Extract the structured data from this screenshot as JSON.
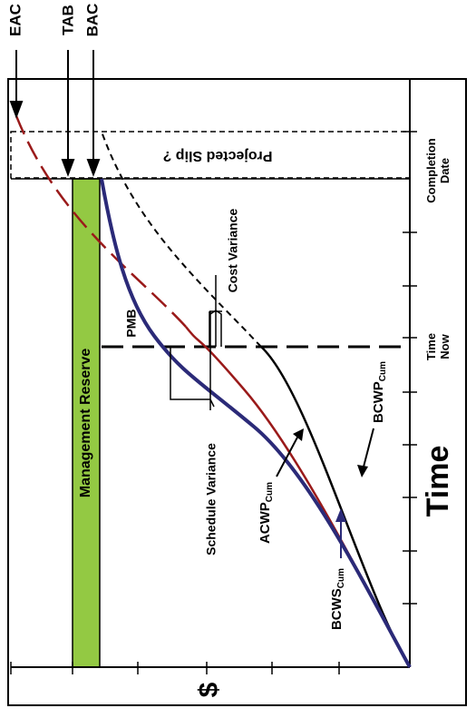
{
  "colors": {
    "bcws": "#2b2a78",
    "acwp": "#9a1a1a",
    "bcwp": "#000000",
    "reserve_fill": "#93c943",
    "text_blue": "#2b2a78",
    "text_red": "#9a1a1a"
  },
  "top_labels": {
    "eac": "EAC",
    "tab": "TAB",
    "bac": "BAC"
  },
  "management_reserve": "Management Reserve",
  "projected_slip": "Projected Slip ?",
  "pmb": "PMB",
  "cost_variance": "Cost Variance",
  "schedule_variance": "Schedule Variance",
  "series": {
    "bcws": {
      "main": "BCWS",
      "sub": "Cum"
    },
    "acwp": {
      "main": "ACWP",
      "sub": "Cum"
    },
    "bcwp": {
      "main": "BCWP",
      "sub": "Cum"
    }
  },
  "time_markers": {
    "completion_line1": "Completion",
    "completion_line2": "Date",
    "now_line1": "Time",
    "now_line2": "Now"
  },
  "axis": {
    "time": "Time",
    "dollar": "$"
  }
}
